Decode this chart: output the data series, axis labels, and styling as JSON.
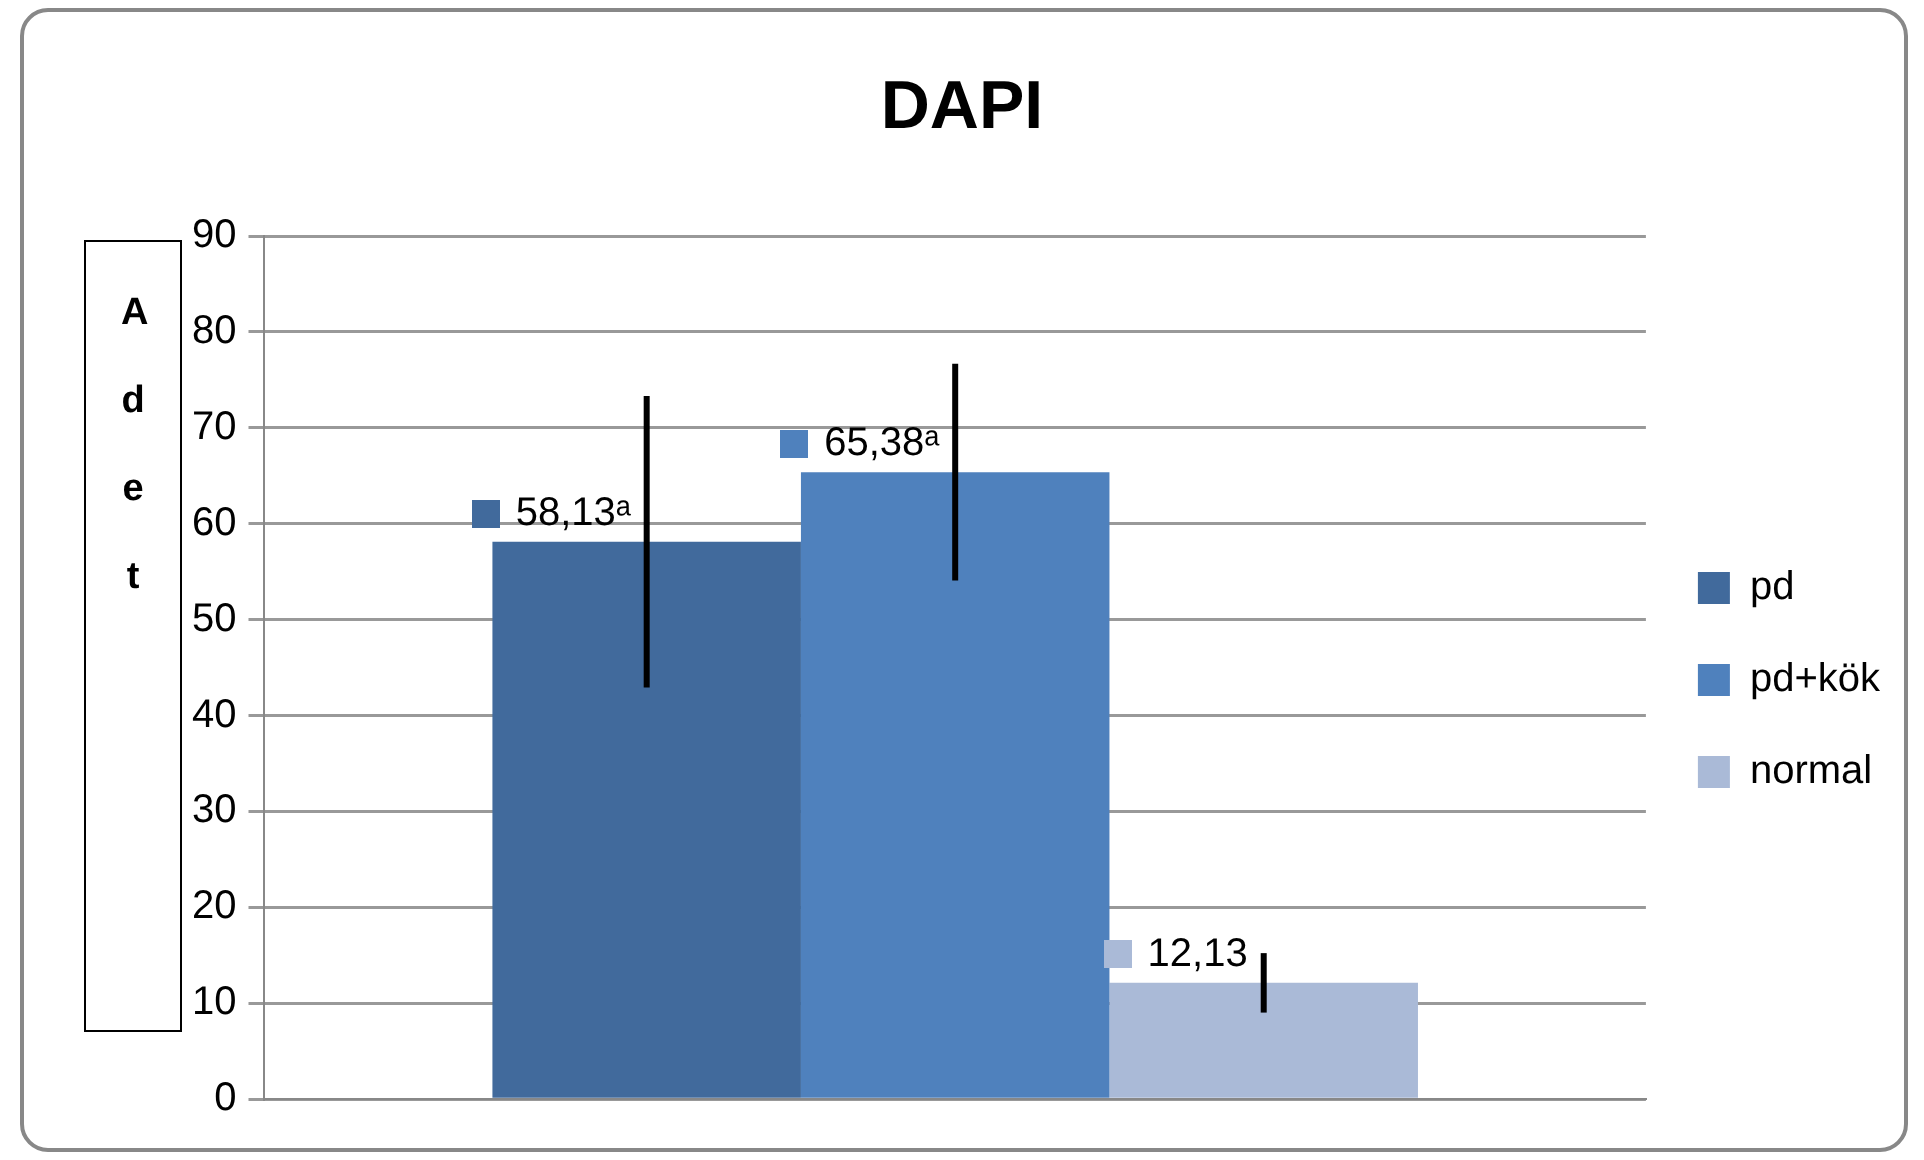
{
  "chart_data": {
    "type": "bar",
    "title": "DAPI",
    "ylabel": "Adet",
    "categories": [
      null
    ],
    "series": [
      {
        "name": "pd",
        "color": "#416a9c",
        "values": [
          58.13
        ],
        "errors": [
          15.2
        ],
        "value_labels": [
          "58,13ᵃ"
        ]
      },
      {
        "name": "pd+kök",
        "color": "#4f81bd",
        "values": [
          65.38
        ],
        "errors": [
          11.3
        ],
        "value_labels": [
          "65,38ᵃ"
        ]
      },
      {
        "name": "normal",
        "color": "#aabad7",
        "values": [
          12.13
        ],
        "errors": [
          3.1
        ],
        "value_labels": [
          "12,13"
        ]
      }
    ],
    "ylim": [
      0,
      90
    ],
    "yticks": [
      0,
      10,
      20,
      30,
      40,
      50,
      60,
      70,
      80,
      90
    ],
    "grid": "y",
    "legend": "right"
  }
}
